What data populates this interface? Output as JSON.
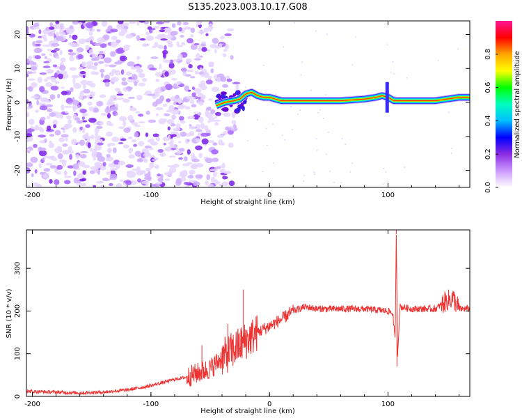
{
  "page_title": "S135.2023.003.10.17.G08",
  "chart_data": [
    {
      "type": "heatmap",
      "xlabel": "Height of straight line (km)",
      "ylabel": "Frequency (Hz)",
      "xlim": [
        -205,
        169
      ],
      "ylim": [
        -25,
        24
      ],
      "xticks": [
        -200,
        -100,
        0,
        100
      ],
      "yticks": [
        -20,
        -10,
        0,
        10,
        20
      ],
      "colorbar": {
        "label": "Normalized spectral amplitude",
        "range": [
          0,
          1
        ],
        "ticks": [
          0.0,
          0.2,
          0.4,
          0.6,
          0.8
        ],
        "colors": [
          "#ffffff",
          "#cc99ff",
          "#8a2be2",
          "#0000ff",
          "#00bfff",
          "#00ffc0",
          "#00ff00",
          "#ffff00",
          "#ffa500",
          "#ff0000",
          "#ff1493"
        ]
      },
      "ridge": {
        "x": [
          -45,
          -38,
          -30,
          -25,
          -20,
          -15,
          -10,
          -5,
          0,
          5,
          10,
          20,
          40,
          60,
          80,
          90,
          95,
          100,
          105,
          120,
          140,
          160,
          169
        ],
        "frequency": [
          -1,
          0,
          0.5,
          1,
          2.5,
          3,
          2,
          1.5,
          1.5,
          1,
          0.5,
          0.5,
          0.5,
          0.5,
          1,
          1.5,
          2,
          1.5,
          0.5,
          0.5,
          0.5,
          1.5,
          1.5
        ]
      },
      "noise_region_x": [
        -205,
        -30
      ]
    },
    {
      "type": "line",
      "xlabel": "Height of straight line (km)",
      "ylabel": "SNR (10 * v/v)",
      "xlim": [
        -205,
        169
      ],
      "ylim": [
        0,
        390
      ],
      "xticks": [
        -200,
        -100,
        0,
        100
      ],
      "yticks": [
        0,
        100,
        200,
        300
      ],
      "color": "#ee3333",
      "x": [
        -205,
        -180,
        -160,
        -140,
        -120,
        -100,
        -80,
        -70,
        -60,
        -50,
        -40,
        -30,
        -20,
        -10,
        0,
        10,
        20,
        30,
        40,
        60,
        80,
        100,
        104,
        106,
        107,
        108,
        110,
        120,
        140,
        150,
        155,
        160,
        169
      ],
      "y": [
        12,
        10,
        8,
        10,
        15,
        25,
        40,
        45,
        55,
        65,
        90,
        110,
        130,
        150,
        165,
        180,
        200,
        210,
        205,
        205,
        205,
        200,
        195,
        130,
        380,
        90,
        210,
        205,
        205,
        225,
        230,
        205,
        205
      ],
      "spikes": [
        {
          "x": -57,
          "y": 120
        },
        {
          "x": -35,
          "y": 170
        },
        {
          "x": -22,
          "y": 250
        },
        {
          "x": 107,
          "y": 390
        },
        {
          "x": 107.5,
          "y": 70
        }
      ]
    }
  ]
}
